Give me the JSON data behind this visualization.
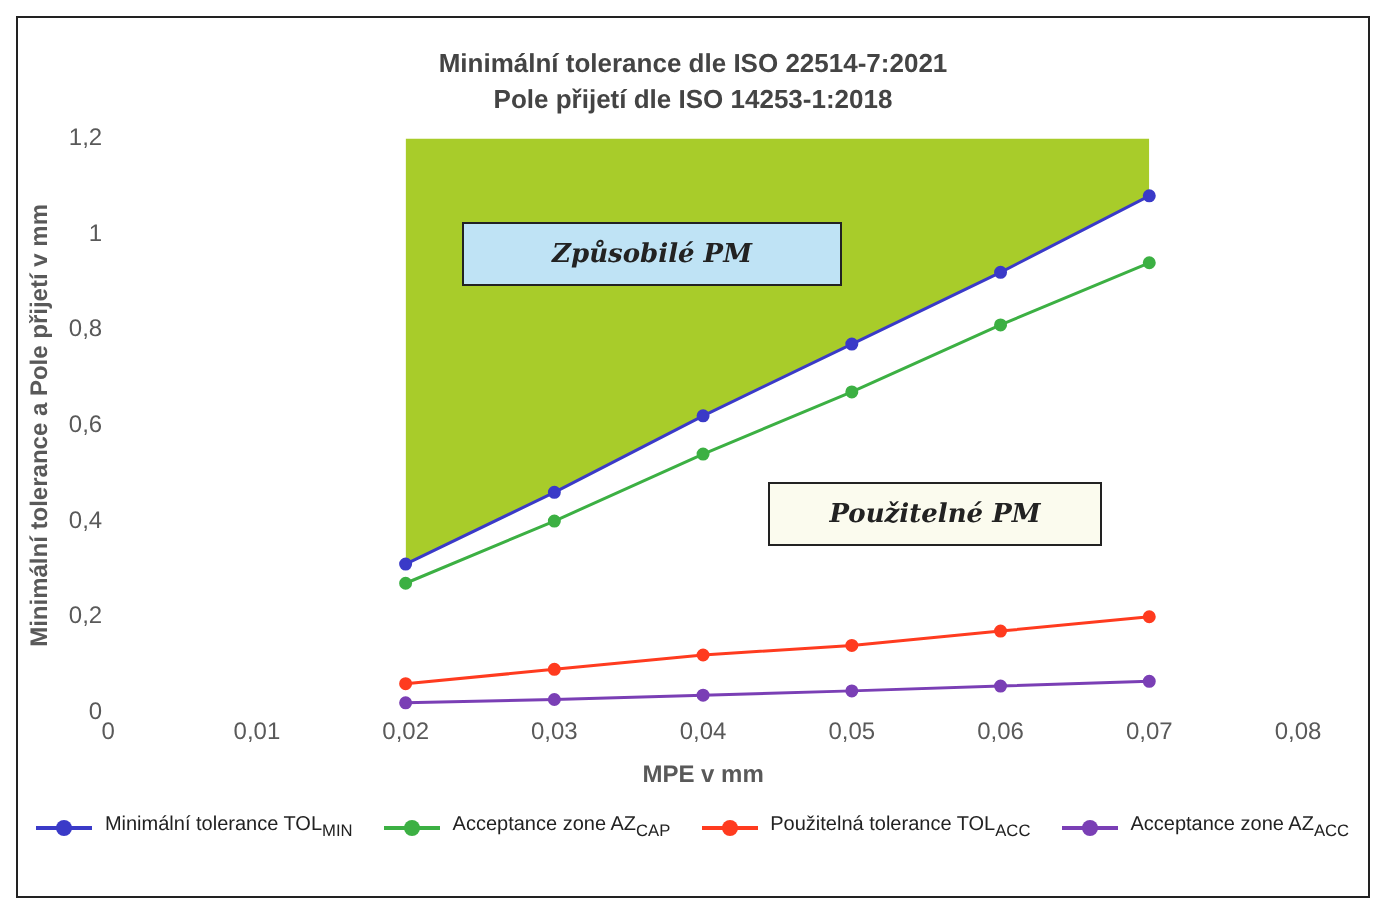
{
  "chart_data": {
    "type": "line",
    "title": "Minimální tolerance dle ISO 22514-7:2021",
    "subtitle": "Pole přijetí dle ISO 14253-1:2018",
    "xlabel": "MPE v mm",
    "ylabel": "Minimální tolerance a Pole přijetí v mm",
    "x": [
      0.02,
      0.03,
      0.04,
      0.05,
      0.06,
      0.07
    ],
    "series": [
      {
        "name": "Minimální tolerance TOL$_{MIN}$",
        "color": "#3a3ac8",
        "values": [
          0.31,
          0.46,
          0.62,
          0.77,
          0.92,
          1.08
        ],
        "upper": [
          1.2,
          1.2,
          1.2,
          1.2,
          1.2,
          1.2
        ],
        "lower": [
          0.31,
          0.46,
          0.62,
          0.77,
          0.92,
          1.08
        ]
      },
      {
        "name": "Acceptance zone AZ$_{CAP}$",
        "color": "#3cb043",
        "values": [
          0.27,
          0.4,
          0.54,
          0.67,
          0.81,
          0.94
        ]
      },
      {
        "name": "Použitelná tolerance TOL$_{ACC}$",
        "color": "#ff3b1f",
        "values": [
          0.06,
          0.09,
          0.12,
          0.14,
          0.17,
          0.2
        ]
      },
      {
        "name": "Acceptance zone AZ$_{ACC}$",
        "color": "#7a3fb5",
        "values": [
          0.02,
          0.027,
          0.036,
          0.045,
          0.055,
          0.065
        ]
      }
    ],
    "xlim": [
      0,
      0.08
    ],
    "xticks": [
      0,
      {
        "value": 0.01,
        "label": "0,01"
      },
      {
        "value": 0.02,
        "label": "0,02"
      },
      {
        "value": 0.03,
        "label": "0,03"
      },
      {
        "value": 0.04,
        "label": "0,04"
      },
      {
        "value": 0.05,
        "label": "0,05"
      },
      {
        "value": 0.06,
        "label": "0,06"
      },
      {
        "value": 0.07,
        "label": "0,07"
      },
      {
        "value": 0.08,
        "label": "0,08"
      }
    ],
    "ylim": [
      0,
      1.2
    ],
    "yticks": [
      0,
      {
        "value": 0.2,
        "label": "0,2"
      },
      {
        "value": 0.4,
        "label": "0,4"
      },
      {
        "value": 0.6,
        "label": "0,6"
      },
      {
        "value": 0.8,
        "label": "0,8"
      },
      1,
      {
        "value": 1.2,
        "label": "1,2"
      }
    ],
    "annotations": [
      "Způsobilé PM",
      "Použitelné PM"
    ],
    "grid": false,
    "legend": "bottom",
    "marker": "circle",
    "line_style": "solid"
  }
}
